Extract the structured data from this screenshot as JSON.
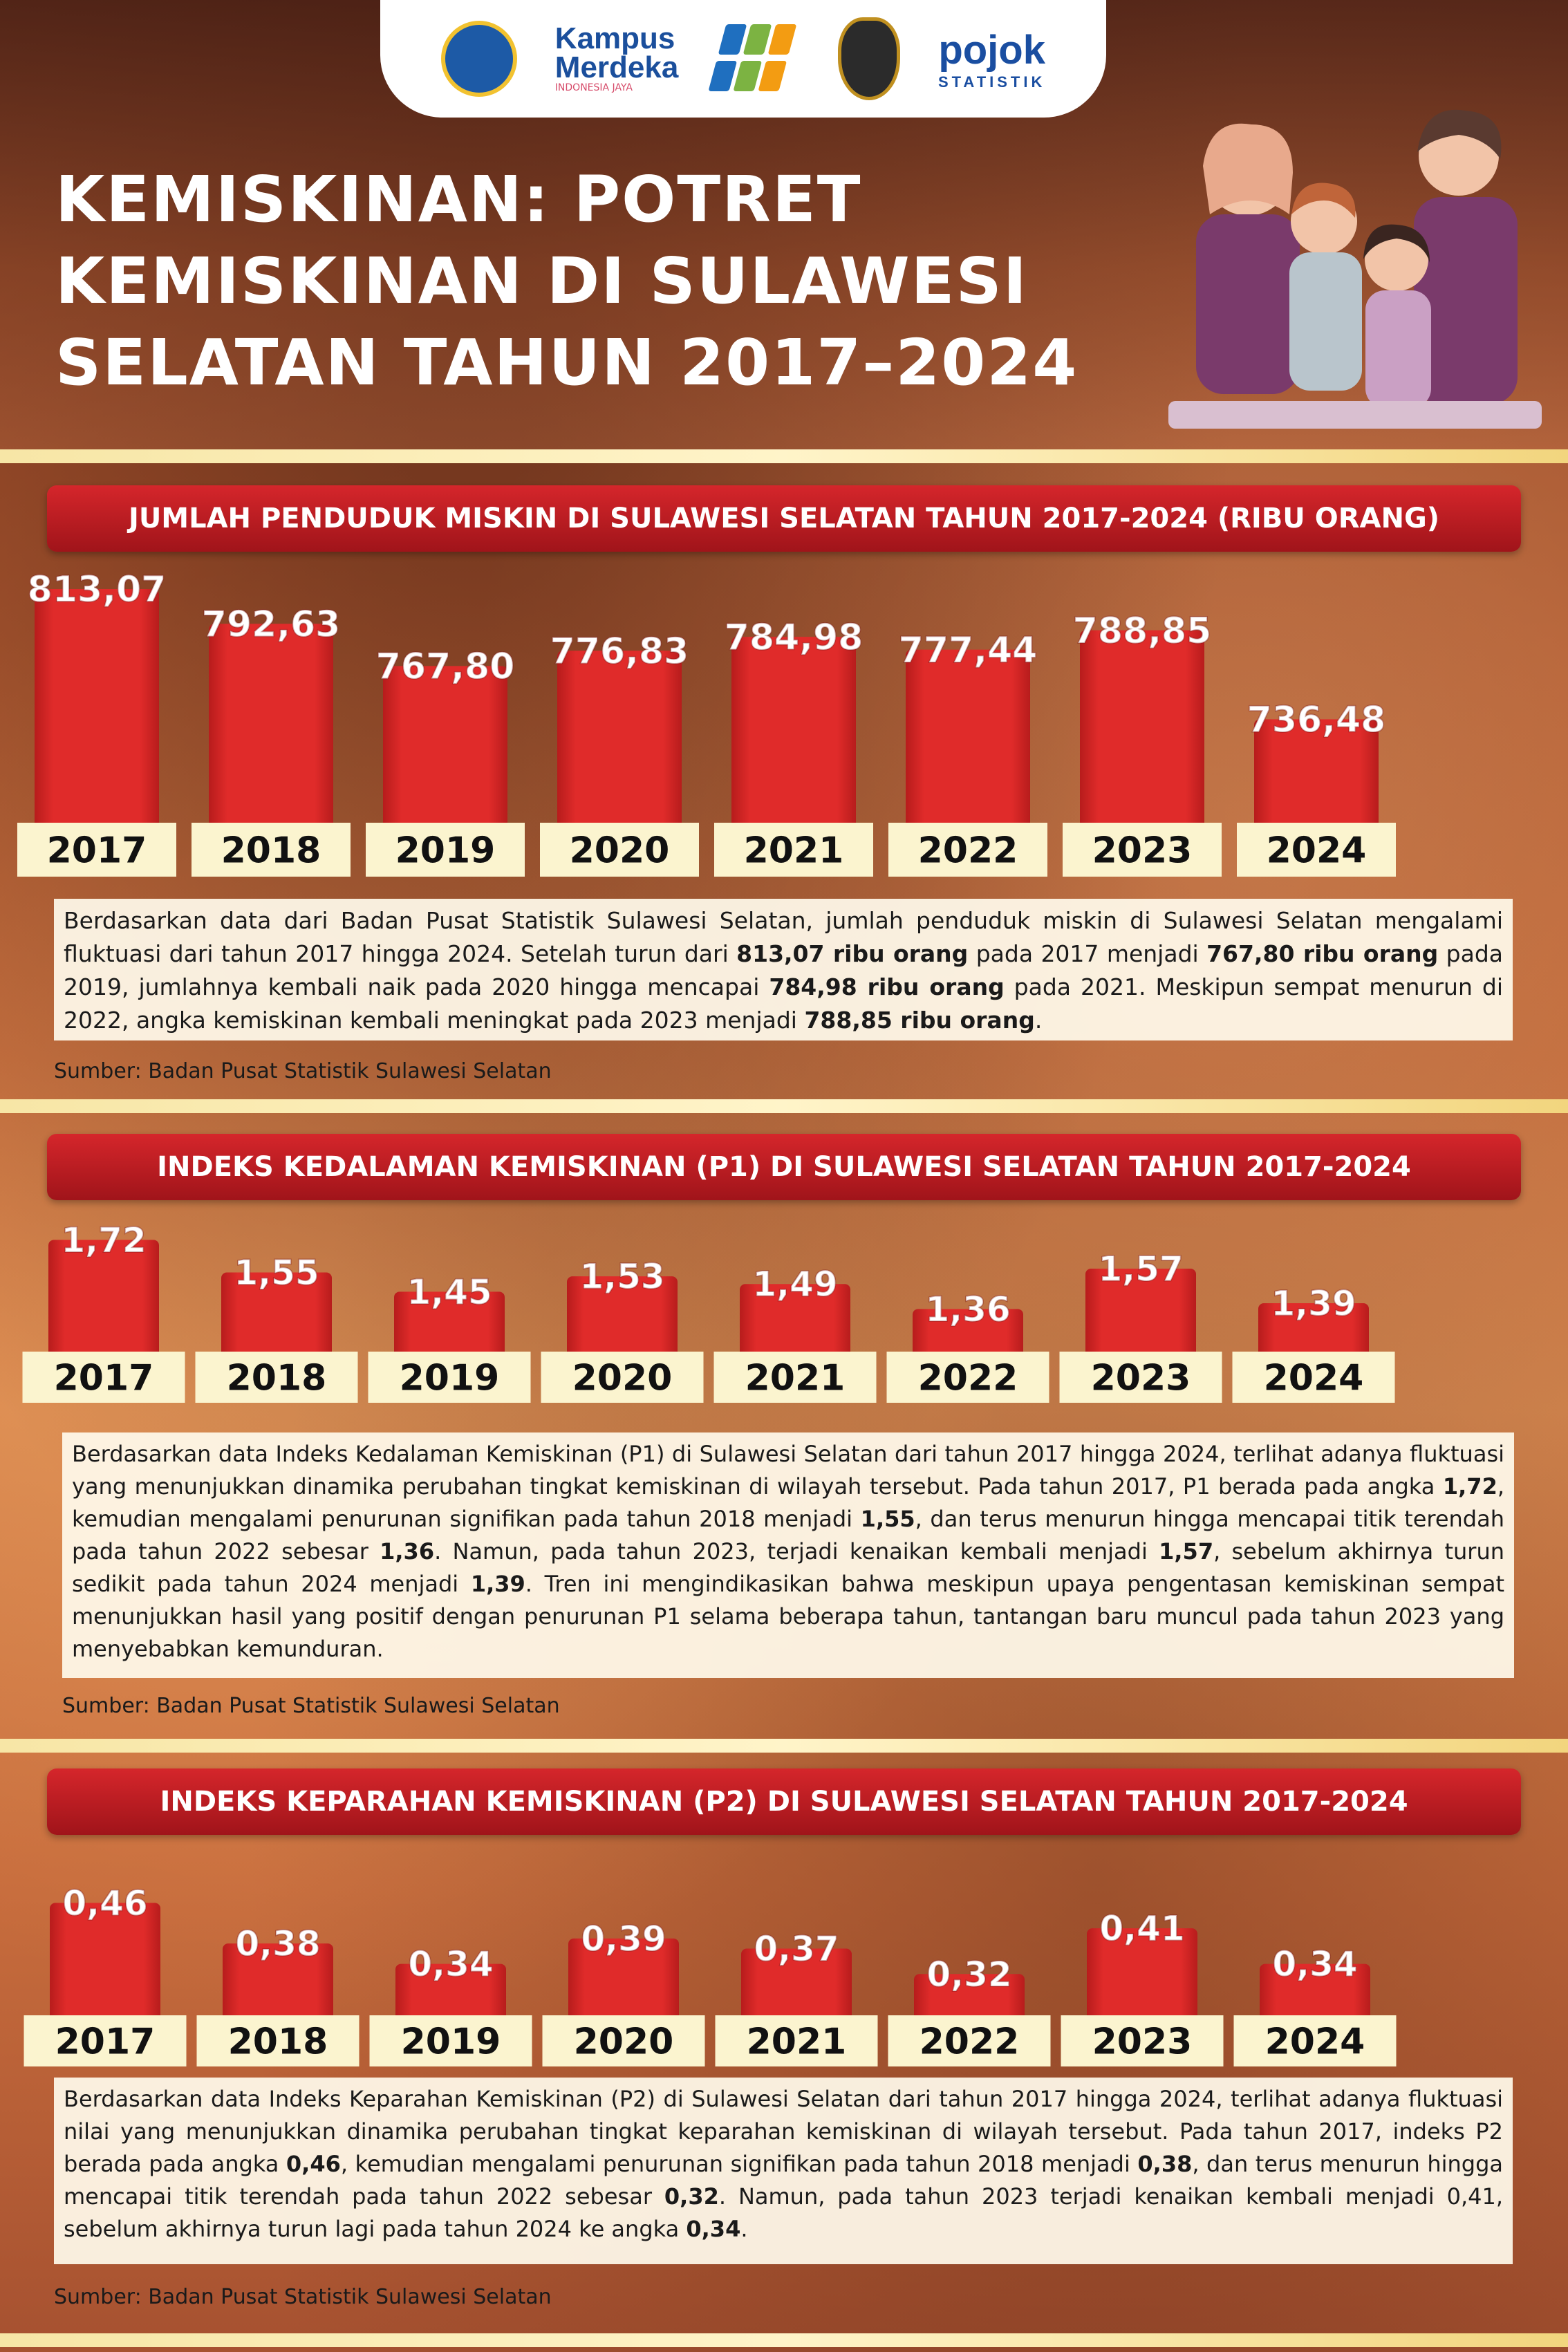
{
  "header": {
    "title": "KEMISKINAN: POTRET KEMISKINAN DI SULAWESI SELATAN TAHUN 2017–2024",
    "title_lines": [
      "KEMISKINAN: POTRET",
      "KEMISKINAN DI SULAWESI",
      "SELATAN TAHUN 2017–2024"
    ],
    "logos": [
      {
        "name": "tut-wuri-handayani-logo"
      },
      {
        "name": "kampus-merdeka-logo",
        "text": "Kampus",
        "text2": "Merdeka",
        "sub": "INDONESIA JAYA"
      },
      {
        "name": "bps-logo"
      },
      {
        "name": "unhas-logo"
      },
      {
        "name": "pojok-statistik-logo",
        "text": "pojok",
        "sub": "STATISTIK"
      }
    ]
  },
  "colors": {
    "bar": "#e02b2a",
    "bar_dark": "#b71c1c",
    "label_box": "#fbf4cf",
    "title_bar": "#c21e24"
  },
  "chart_data": [
    {
      "type": "bar",
      "title": "JUMLAH PENDUDUK MISKIN DI SULAWESI SELATAN TAHUN 2017-2024 (RIBU ORANG)",
      "categories": [
        "2017",
        "2018",
        "2019",
        "2020",
        "2021",
        "2022",
        "2023",
        "2024"
      ],
      "values": [
        813.07,
        792.63,
        767.8,
        776.83,
        784.98,
        777.44,
        788.85,
        736.48
      ],
      "value_labels": [
        "813,07",
        "792,63",
        "767,80",
        "776,83",
        "784,98",
        "777,44",
        "788,85",
        "736,48"
      ],
      "xlabel": "",
      "ylabel": ""
    },
    {
      "type": "bar",
      "title": "INDEKS KEDALAMAN KEMISKINAN (P1) DI SULAWESI SELATAN TAHUN 2017-2024",
      "categories": [
        "2017",
        "2018",
        "2019",
        "2020",
        "2021",
        "2022",
        "2023",
        "2024"
      ],
      "values": [
        1.72,
        1.55,
        1.45,
        1.53,
        1.49,
        1.36,
        1.57,
        1.39
      ],
      "value_labels": [
        "1,72",
        "1,55",
        "1,45",
        "1,53",
        "1,49",
        "1,36",
        "1,57",
        "1,39"
      ],
      "xlabel": "",
      "ylabel": ""
    },
    {
      "type": "bar",
      "title": "INDEKS KEPARAHAN KEMISKINAN (P2) DI SULAWESI SELATAN TAHUN 2017-2024",
      "categories": [
        "2017",
        "2018",
        "2019",
        "2020",
        "2021",
        "2022",
        "2023",
        "2024"
      ],
      "values": [
        0.46,
        0.38,
        0.34,
        0.39,
        0.37,
        0.32,
        0.41,
        0.34
      ],
      "value_labels": [
        "0,46",
        "0,38",
        "0,34",
        "0,39",
        "0,37",
        "0,32",
        "0,41",
        "0,34"
      ],
      "xlabel": "",
      "ylabel": ""
    }
  ],
  "sections": [
    {
      "paragraph_parts": [
        {
          "t": "Berdasarkan data dari Badan Pusat Statistik Sulawesi Selatan, jumlah penduduk miskin di Sulawesi Selatan mengalami fluktuasi dari tahun 2017 hingga 2024. Setelah turun dari "
        },
        {
          "t": "813,07 ribu orang",
          "b": true
        },
        {
          "t": " pada 2017 menjadi "
        },
        {
          "t": "767,80 ribu orang",
          "b": true
        },
        {
          "t": " pada 2019, jumlahnya kembali naik pada 2020 hingga mencapai "
        },
        {
          "t": "784,98 ribu orang",
          "b": true
        },
        {
          "t": " pada 2021. Meskipun sempat menurun di 2022, angka kemiskinan kembali meningkat pada 2023 menjadi "
        },
        {
          "t": "788,85 ribu orang",
          "b": true
        },
        {
          "t": "."
        }
      ],
      "source": "Sumber: Badan Pusat Statistik Sulawesi Selatan"
    },
    {
      "paragraph_parts": [
        {
          "t": "Berdasarkan data Indeks Kedalaman Kemiskinan (P1) di Sulawesi Selatan dari tahun 2017 hingga 2024, terlihat adanya fluktuasi yang menunjukkan dinamika perubahan tingkat kemiskinan di wilayah tersebut. Pada tahun 2017, P1 berada pada angka "
        },
        {
          "t": "1,72",
          "b": true
        },
        {
          "t": ", kemudian mengalami penurunan signifikan pada tahun 2018 menjadi "
        },
        {
          "t": "1,55",
          "b": true
        },
        {
          "t": ", dan terus menurun hingga mencapai titik terendah pada tahun 2022 sebesar "
        },
        {
          "t": "1,36",
          "b": true
        },
        {
          "t": ". Namun, pada tahun 2023, terjadi kenaikan kembali menjadi "
        },
        {
          "t": "1,57",
          "b": true
        },
        {
          "t": ", sebelum akhirnya turun sedikit pada tahun 2024 menjadi "
        },
        {
          "t": "1,39",
          "b": true
        },
        {
          "t": ". Tren ini mengindikasikan bahwa meskipun upaya pengentasan kemiskinan sempat menunjukkan hasil yang positif dengan penurunan P1 selama beberapa tahun, tantangan baru muncul pada tahun 2023 yang menyebabkan kemunduran."
        }
      ],
      "source": "Sumber: Badan Pusat Statistik Sulawesi Selatan"
    },
    {
      "paragraph_parts": [
        {
          "t": "Berdasarkan data Indeks Keparahan Kemiskinan (P2) di Sulawesi Selatan dari tahun 2017 hingga 2024, terlihat adanya fluktuasi nilai yang menunjukkan dinamika perubahan tingkat keparahan kemiskinan di wilayah tersebut. Pada tahun 2017, indeks P2 berada pada angka "
        },
        {
          "t": "0,46",
          "b": true
        },
        {
          "t": ", kemudian mengalami penurunan signifikan pada tahun 2018 menjadi "
        },
        {
          "t": "0,38",
          "b": true
        },
        {
          "t": ", dan terus menurun hingga mencapai titik terendah pada tahun 2022 sebesar "
        },
        {
          "t": "0,32",
          "b": true
        },
        {
          "t": ". Namun, pada tahun 2023 terjadi kenaikan kembali menjadi 0,41, sebelum akhirnya turun lagi pada tahun 2024 ke angka "
        },
        {
          "t": "0,34",
          "b": true
        },
        {
          "t": "."
        }
      ],
      "source": "Sumber: Badan Pusat Statistik Sulawesi Selatan"
    }
  ]
}
